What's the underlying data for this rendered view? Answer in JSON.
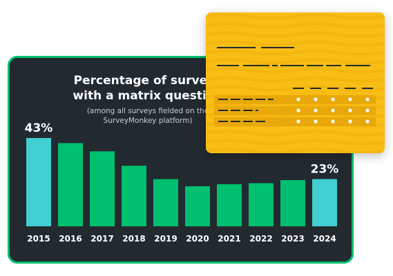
{
  "chart_data": {
    "type": "bar",
    "title": "Percentage of surveys with a matrix question",
    "title_lines": [
      "Percentage of surveys",
      "with a matrix question"
    ],
    "subtitle": "(among all surveys fielded on the SurveyMonkey platform)",
    "subtitle_lines": [
      "(among all surveys fielded on the",
      "SurveyMonkey platform)"
    ],
    "categories": [
      "2015",
      "2016",
      "2017",
      "2018",
      "2019",
      "2020",
      "2021",
      "2022",
      "2023",
      "2024"
    ],
    "values": [
      43,
      40.5,
      36.5,
      29.5,
      23,
      19.5,
      20.5,
      21,
      22.5,
      23
    ],
    "value_labels": [
      {
        "category": "2015",
        "text": "43%"
      },
      {
        "category": "2024",
        "text": "23%"
      }
    ],
    "highlighted": [
      "2015",
      "2024"
    ],
    "ylim": [
      0,
      50
    ],
    "grid": false,
    "xlabel": "",
    "ylabel": ""
  },
  "colors": {
    "card_background": "#222a30",
    "card_border": "#00bf6f",
    "bar_default": "#00bf6f",
    "bar_highlight": "#41cfd1",
    "form_background": "#f8be15",
    "form_row": "#e8a80a"
  },
  "form_illustration": {
    "rows": 3,
    "columns": 5
  }
}
